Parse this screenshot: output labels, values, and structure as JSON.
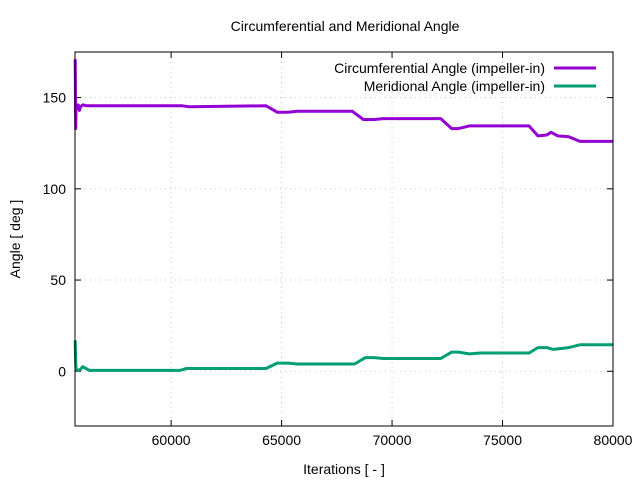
{
  "chart_data": {
    "type": "line",
    "title": "Circumferential and Meridional Angle",
    "xlabel": "Iterations [ - ]",
    "ylabel": "Angle [ deg ]",
    "xlim": [
      55650,
      80000
    ],
    "ylim": [
      -30,
      175
    ],
    "xticks": [
      60000,
      65000,
      70000,
      75000,
      80000
    ],
    "yticks": [
      0,
      50,
      100,
      150
    ],
    "grid": true,
    "legend_position": "top-right",
    "series": [
      {
        "name": "Circumferential Angle (impeller-in)",
        "color": "#9400d3",
        "x": [
          55660,
          55680,
          55700,
          55750,
          55800,
          55850,
          55900,
          56000,
          56200,
          56500,
          60500,
          60800,
          64300,
          64800,
          65300,
          65700,
          68200,
          68700,
          69200,
          69600,
          72200,
          72700,
          73000,
          73500,
          76200,
          76600,
          77000,
          77200,
          77500,
          78000,
          78500,
          80000
        ],
        "y": [
          171,
          133,
          146,
          144,
          146,
          143,
          145,
          146,
          145.5,
          145.5,
          145.5,
          145,
          145.5,
          142,
          142,
          142.5,
          142.5,
          138,
          138,
          138.5,
          138.5,
          133,
          133,
          134.5,
          134.5,
          129,
          129.5,
          131,
          129,
          128.5,
          126,
          126
        ]
      },
      {
        "name": "Meridional Angle (impeller-in)",
        "color": "#009e73",
        "x": [
          55660,
          55680,
          55700,
          55800,
          55900,
          56000,
          56300,
          60400,
          60700,
          61500,
          64300,
          64800,
          65300,
          65700,
          68300,
          68800,
          69200,
          69600,
          72200,
          72700,
          73000,
          73500,
          74000,
          76200,
          76600,
          77000,
          77300,
          78000,
          78500,
          80000
        ],
        "y": [
          17,
          5,
          1,
          0.5,
          1,
          2.5,
          0.5,
          0.5,
          1.5,
          1.5,
          1.5,
          4.5,
          4.5,
          4,
          4,
          7.5,
          7.5,
          7,
          7,
          10.5,
          10.5,
          9.5,
          10,
          10,
          13,
          13,
          12,
          13,
          14.5,
          14.5
        ]
      }
    ]
  }
}
